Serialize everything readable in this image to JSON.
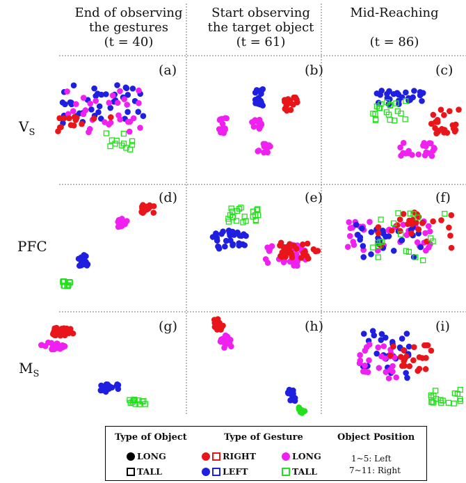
{
  "columns": [
    {
      "line1": "End of observing",
      "line2": "the gestures",
      "line3": "(t = 40)"
    },
    {
      "line1": "Start observing",
      "line2": "the target object",
      "line3": "(t = 61)"
    },
    {
      "line1": "Mid-Reaching",
      "line2": "",
      "line3": "(t = 86)"
    }
  ],
  "rows": [
    {
      "main": "V",
      "sub": "S"
    },
    {
      "main": "PFC",
      "sub": ""
    },
    {
      "main": "M",
      "sub": "S"
    }
  ],
  "panels": [
    "(a)",
    "(b)",
    "(c)",
    "(d)",
    "(e)",
    "(f)",
    "(g)",
    "(h)",
    "(i)"
  ],
  "colors": {
    "right": "#e8161b",
    "left": "#1f1fe0",
    "long": "#f020f0",
    "tall": "#22e01c",
    "object_long": "#000000"
  },
  "legend": {
    "type_of_object": "Type of Object",
    "type_of_gesture": "Type of Gesture",
    "object_position": "Object Position",
    "long": "LONG",
    "tall": "TALL",
    "right": "RIGHT",
    "left": "LEFT",
    "gesture_long": "LONG",
    "gesture_tall": "TALL",
    "pos_left": "1~5: Left",
    "pos_right": "7~11: Right"
  }
}
